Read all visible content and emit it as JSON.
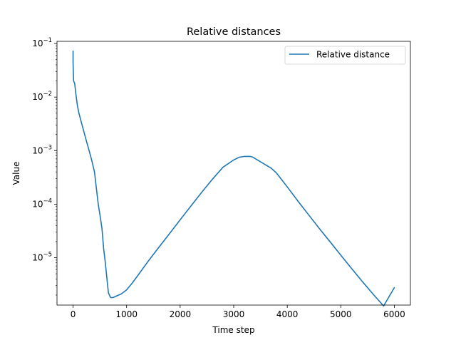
{
  "chart_data": {
    "type": "line",
    "title": "Relative distances",
    "xlabel": "Time step",
    "ylabel": "Value",
    "xlim": [
      -300,
      6300
    ],
    "ylim": [
      1.3e-06,
      0.11
    ],
    "yscale": "log",
    "grid": false,
    "legend_position": "top-right",
    "x_ticks": [
      {
        "value": 0,
        "label": "0"
      },
      {
        "value": 1000,
        "label": "1000"
      },
      {
        "value": 2000,
        "label": "2000"
      },
      {
        "value": 3000,
        "label": "3000"
      },
      {
        "value": 4000,
        "label": "4000"
      },
      {
        "value": 5000,
        "label": "5000"
      },
      {
        "value": 6000,
        "label": "6000"
      }
    ],
    "y_ticks": [
      {
        "value": 1e-05,
        "base": "10",
        "exp": "−5"
      },
      {
        "value": 0.0001,
        "base": "10",
        "exp": "−4"
      },
      {
        "value": 0.001,
        "base": "10",
        "exp": "−3"
      },
      {
        "value": 0.01,
        "base": "10",
        "exp": "−2"
      },
      {
        "value": 0.1,
        "base": "10",
        "exp": "−1"
      }
    ],
    "series": [
      {
        "name": "Relative distance",
        "color": "#1f77b4",
        "x": [
          0,
          0,
          5,
          10,
          30,
          50,
          80,
          110,
          150,
          200,
          250,
          300,
          350,
          400,
          430,
          470,
          500,
          540,
          570,
          600,
          630,
          660,
          700,
          750,
          800,
          900,
          1000,
          1100,
          1200,
          1400,
          1600,
          1800,
          2000,
          2200,
          2400,
          2600,
          2800,
          3000,
          3100,
          3200,
          3300,
          3350,
          3400,
          3500,
          3600,
          3700,
          3800,
          4000,
          4200,
          4400,
          4600,
          4800,
          5000,
          5200,
          5400,
          5600,
          5800,
          6000
        ],
        "y": [
          0.072,
          0.045,
          0.028,
          0.02,
          0.018,
          0.012,
          0.007,
          0.005,
          0.0035,
          0.0023,
          0.0015,
          0.001,
          0.00065,
          0.0004,
          0.00022,
          0.0001,
          6.5e-05,
          3.5e-05,
          1.5e-05,
          8.5e-06,
          4.3e-06,
          2.2e-06,
          1.8e-06,
          1.8e-06,
          1.9e-06,
          2.1e-06,
          2.5e-06,
          3.3e-06,
          4.5e-06,
          8.5e-06,
          1.55e-05,
          2.8e-05,
          5.1e-05,
          9.2e-05,
          0.000165,
          0.00029,
          0.00049,
          0.00067,
          0.00075,
          0.00078,
          0.00078,
          0.00076,
          0.00071,
          0.00062,
          0.00054,
          0.00047,
          0.00038,
          0.00021,
          0.000114,
          6.3e-05,
          3.5e-05,
          1.98e-05,
          1.11e-05,
          6.3e-06,
          3.6e-06,
          2.1e-06,
          1.25e-06,
          2.75e-06
        ]
      }
    ]
  }
}
